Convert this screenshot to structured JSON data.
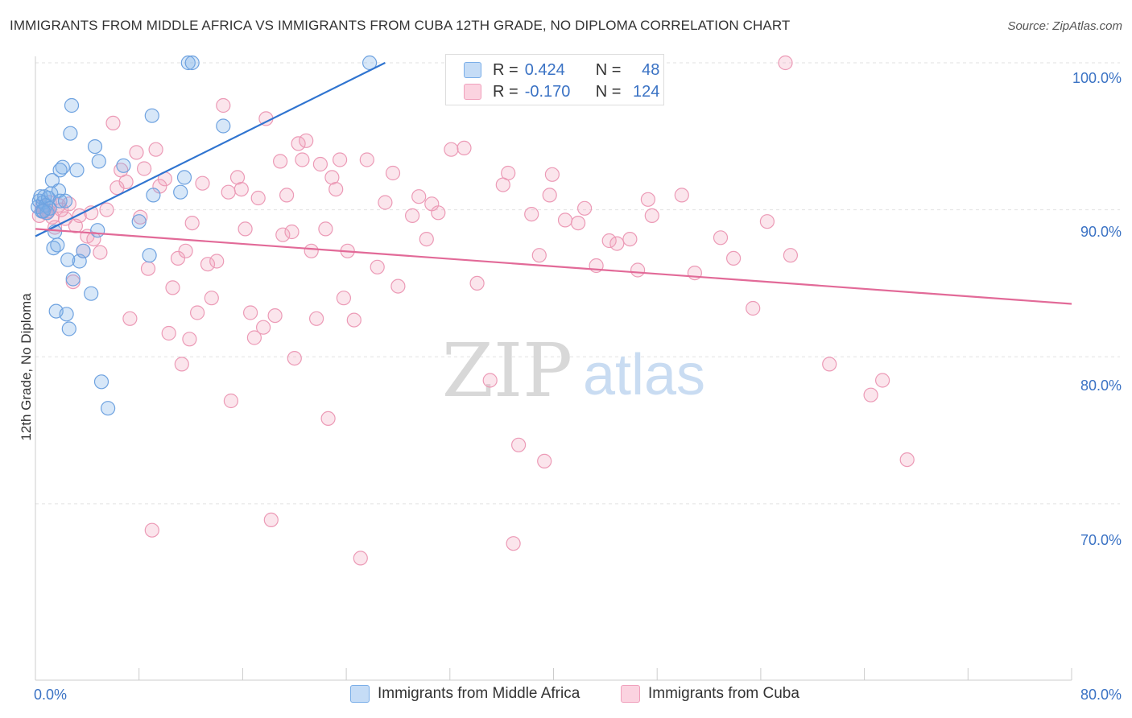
{
  "title": "IMMIGRANTS FROM MIDDLE AFRICA VS IMMIGRANTS FROM CUBA 12TH GRADE, NO DIPLOMA CORRELATION CHART",
  "source": "Source: ZipAtlas.com",
  "watermark": {
    "zip": "ZIP",
    "atlas": "atlas"
  },
  "legend": {
    "rows": [
      {
        "r_label": "R =",
        "r_value": "0.424",
        "n_label": "N =",
        "n_value": "48",
        "color": "#7aaee8"
      },
      {
        "r_label": "R =",
        "r_value": "-0.170",
        "n_label": "N =",
        "n_value": "124",
        "color": "#f0a0bc"
      }
    ]
  },
  "chart_data": {
    "type": "scatter",
    "title": "IMMIGRANTS FROM MIDDLE AFRICA VS IMMIGRANTS FROM CUBA 12TH GRADE, NO DIPLOMA CORRELATION CHART",
    "xlabel": "",
    "ylabel": "12th Grade, No Diploma",
    "xlim": [
      0,
      80
    ],
    "ylim": [
      60,
      102
    ],
    "x_tick_labels": [
      "0.0%",
      "80.0%"
    ],
    "y_ticks": [
      70,
      80,
      90,
      100
    ],
    "y_tick_labels": [
      "70.0%",
      "80.0%",
      "90.0%",
      "100.0%"
    ],
    "grid": true,
    "legend_position": "top-center",
    "series": [
      {
        "name": "Immigrants from Middle Africa",
        "color": "#7aaee8",
        "trend": {
          "x": [
            0,
            27
          ],
          "y": [
            88.2,
            100.0
          ]
        },
        "points": [
          [
            0.2,
            90.2
          ],
          [
            0.3,
            90.6
          ],
          [
            0.4,
            90.9
          ],
          [
            0.5,
            89.9
          ],
          [
            0.6,
            90.5
          ],
          [
            0.7,
            90.9
          ],
          [
            0.8,
            90.3
          ],
          [
            0.9,
            89.8
          ],
          [
            1.0,
            90.8
          ],
          [
            1.1,
            90.1
          ],
          [
            1.2,
            91.1
          ],
          [
            1.3,
            92.0
          ],
          [
            1.4,
            87.4
          ],
          [
            1.5,
            88.5
          ],
          [
            1.6,
            83.1
          ],
          [
            1.7,
            87.6
          ],
          [
            1.8,
            91.3
          ],
          [
            1.9,
            90.6
          ],
          [
            2.1,
            92.9
          ],
          [
            2.3,
            90.6
          ],
          [
            2.4,
            82.9
          ],
          [
            2.5,
            86.6
          ],
          [
            2.6,
            81.9
          ],
          [
            2.7,
            95.2
          ],
          [
            2.8,
            97.1
          ],
          [
            2.9,
            85.3
          ],
          [
            3.2,
            92.7
          ],
          [
            3.4,
            86.5
          ],
          [
            3.7,
            87.2
          ],
          [
            4.3,
            84.3
          ],
          [
            4.6,
            94.3
          ],
          [
            4.8,
            88.6
          ],
          [
            4.9,
            93.3
          ],
          [
            5.1,
            78.3
          ],
          [
            5.6,
            76.5
          ],
          [
            6.8,
            93.0
          ],
          [
            8.0,
            89.2
          ],
          [
            8.8,
            86.9
          ],
          [
            9.0,
            96.4
          ],
          [
            9.1,
            91.0
          ],
          [
            11.2,
            91.2
          ],
          [
            11.5,
            92.2
          ],
          [
            11.8,
            100.0
          ],
          [
            12.1,
            100.0
          ],
          [
            14.5,
            95.7
          ],
          [
            25.8,
            100.0
          ],
          [
            0.6,
            89.9
          ],
          [
            1.9,
            92.7
          ]
        ]
      },
      {
        "name": "Immigrants from Cuba",
        "color": "#f0a0bc",
        "trend": {
          "x": [
            0,
            80
          ],
          "y": [
            88.7,
            83.6
          ]
        },
        "points": [
          [
            0.3,
            89.6
          ],
          [
            0.5,
            90.2
          ],
          [
            0.7,
            90.0
          ],
          [
            1.0,
            89.9
          ],
          [
            1.3,
            89.5
          ],
          [
            1.5,
            88.8
          ],
          [
            1.8,
            90.3
          ],
          [
            2.0,
            90.0
          ],
          [
            2.3,
            89.4
          ],
          [
            2.6,
            90.4
          ],
          [
            2.9,
            85.1
          ],
          [
            3.1,
            88.9
          ],
          [
            3.4,
            89.6
          ],
          [
            3.7,
            87.2
          ],
          [
            4.0,
            88.2
          ],
          [
            4.3,
            89.8
          ],
          [
            5.0,
            87.1
          ],
          [
            5.5,
            90.0
          ],
          [
            6.0,
            95.9
          ],
          [
            6.3,
            91.5
          ],
          [
            6.6,
            92.7
          ],
          [
            7.0,
            91.9
          ],
          [
            7.3,
            82.6
          ],
          [
            7.8,
            93.9
          ],
          [
            8.1,
            89.5
          ],
          [
            8.4,
            92.8
          ],
          [
            8.7,
            86.0
          ],
          [
            9.0,
            68.2
          ],
          [
            9.3,
            94.1
          ],
          [
            9.6,
            91.6
          ],
          [
            10.0,
            92.1
          ],
          [
            10.3,
            81.6
          ],
          [
            10.6,
            84.7
          ],
          [
            11.0,
            86.7
          ],
          [
            11.3,
            79.5
          ],
          [
            11.6,
            87.2
          ],
          [
            11.9,
            81.2
          ],
          [
            12.1,
            89.1
          ],
          [
            12.5,
            83.0
          ],
          [
            12.9,
            91.8
          ],
          [
            13.3,
            86.3
          ],
          [
            13.6,
            84.0
          ],
          [
            14.0,
            86.5
          ],
          [
            14.5,
            97.1
          ],
          [
            14.9,
            91.2
          ],
          [
            15.1,
            77.0
          ],
          [
            15.6,
            92.2
          ],
          [
            15.9,
            91.4
          ],
          [
            16.2,
            88.7
          ],
          [
            16.6,
            83.0
          ],
          [
            16.9,
            81.3
          ],
          [
            17.2,
            90.8
          ],
          [
            17.6,
            82.0
          ],
          [
            17.8,
            96.2
          ],
          [
            18.2,
            68.9
          ],
          [
            18.5,
            82.8
          ],
          [
            18.9,
            93.3
          ],
          [
            19.1,
            88.3
          ],
          [
            19.4,
            91.0
          ],
          [
            19.8,
            88.5
          ],
          [
            20.0,
            79.9
          ],
          [
            20.3,
            94.5
          ],
          [
            20.6,
            93.4
          ],
          [
            20.9,
            94.7
          ],
          [
            21.3,
            87.2
          ],
          [
            21.7,
            82.6
          ],
          [
            22.0,
            93.1
          ],
          [
            22.4,
            88.7
          ],
          [
            22.6,
            75.8
          ],
          [
            22.9,
            92.2
          ],
          [
            23.2,
            91.4
          ],
          [
            23.5,
            93.4
          ],
          [
            23.8,
            84.0
          ],
          [
            24.1,
            87.2
          ],
          [
            24.6,
            82.5
          ],
          [
            25.1,
            66.3
          ],
          [
            25.6,
            93.4
          ],
          [
            26.4,
            86.1
          ],
          [
            27.0,
            90.5
          ],
          [
            27.6,
            92.5
          ],
          [
            28.0,
            84.8
          ],
          [
            29.1,
            89.6
          ],
          [
            29.6,
            90.9
          ],
          [
            30.2,
            88.0
          ],
          [
            30.6,
            90.4
          ],
          [
            31.1,
            89.8
          ],
          [
            32.1,
            94.1
          ],
          [
            33.1,
            94.2
          ],
          [
            34.1,
            85.0
          ],
          [
            35.1,
            78.4
          ],
          [
            36.1,
            91.7
          ],
          [
            36.5,
            92.5
          ],
          [
            36.9,
            67.3
          ],
          [
            37.3,
            74.0
          ],
          [
            38.3,
            89.7
          ],
          [
            38.9,
            86.9
          ],
          [
            39.3,
            72.9
          ],
          [
            39.7,
            91.0
          ],
          [
            39.9,
            92.4
          ],
          [
            40.9,
            89.3
          ],
          [
            41.9,
            89.1
          ],
          [
            42.4,
            90.1
          ],
          [
            43.3,
            86.2
          ],
          [
            44.3,
            87.9
          ],
          [
            44.9,
            87.7
          ],
          [
            45.9,
            88.0
          ],
          [
            46.5,
            85.9
          ],
          [
            47.3,
            90.7
          ],
          [
            47.6,
            89.6
          ],
          [
            49.9,
            91.0
          ],
          [
            50.9,
            85.7
          ],
          [
            52.9,
            88.1
          ],
          [
            53.9,
            86.7
          ],
          [
            55.4,
            83.3
          ],
          [
            56.5,
            89.2
          ],
          [
            57.9,
            100.0
          ],
          [
            58.3,
            86.9
          ],
          [
            61.3,
            79.5
          ],
          [
            64.5,
            77.4
          ],
          [
            65.4,
            78.4
          ],
          [
            67.3,
            73.0
          ],
          [
            0.8,
            89.8
          ],
          [
            1.1,
            90.5
          ],
          [
            4.5,
            88.0
          ]
        ]
      }
    ]
  },
  "axis": {
    "ylabel": "12th Grade, No Diploma",
    "x_left": "0.0%",
    "x_right": "80.0%",
    "y_labels": [
      "70.0%",
      "80.0%",
      "90.0%",
      "100.0%"
    ]
  },
  "bottom_legend": [
    {
      "label": "Immigrants from Middle Africa",
      "color": "#7aaee8"
    },
    {
      "label": "Immigrants from Cuba",
      "color": "#f0a0bc"
    }
  ]
}
